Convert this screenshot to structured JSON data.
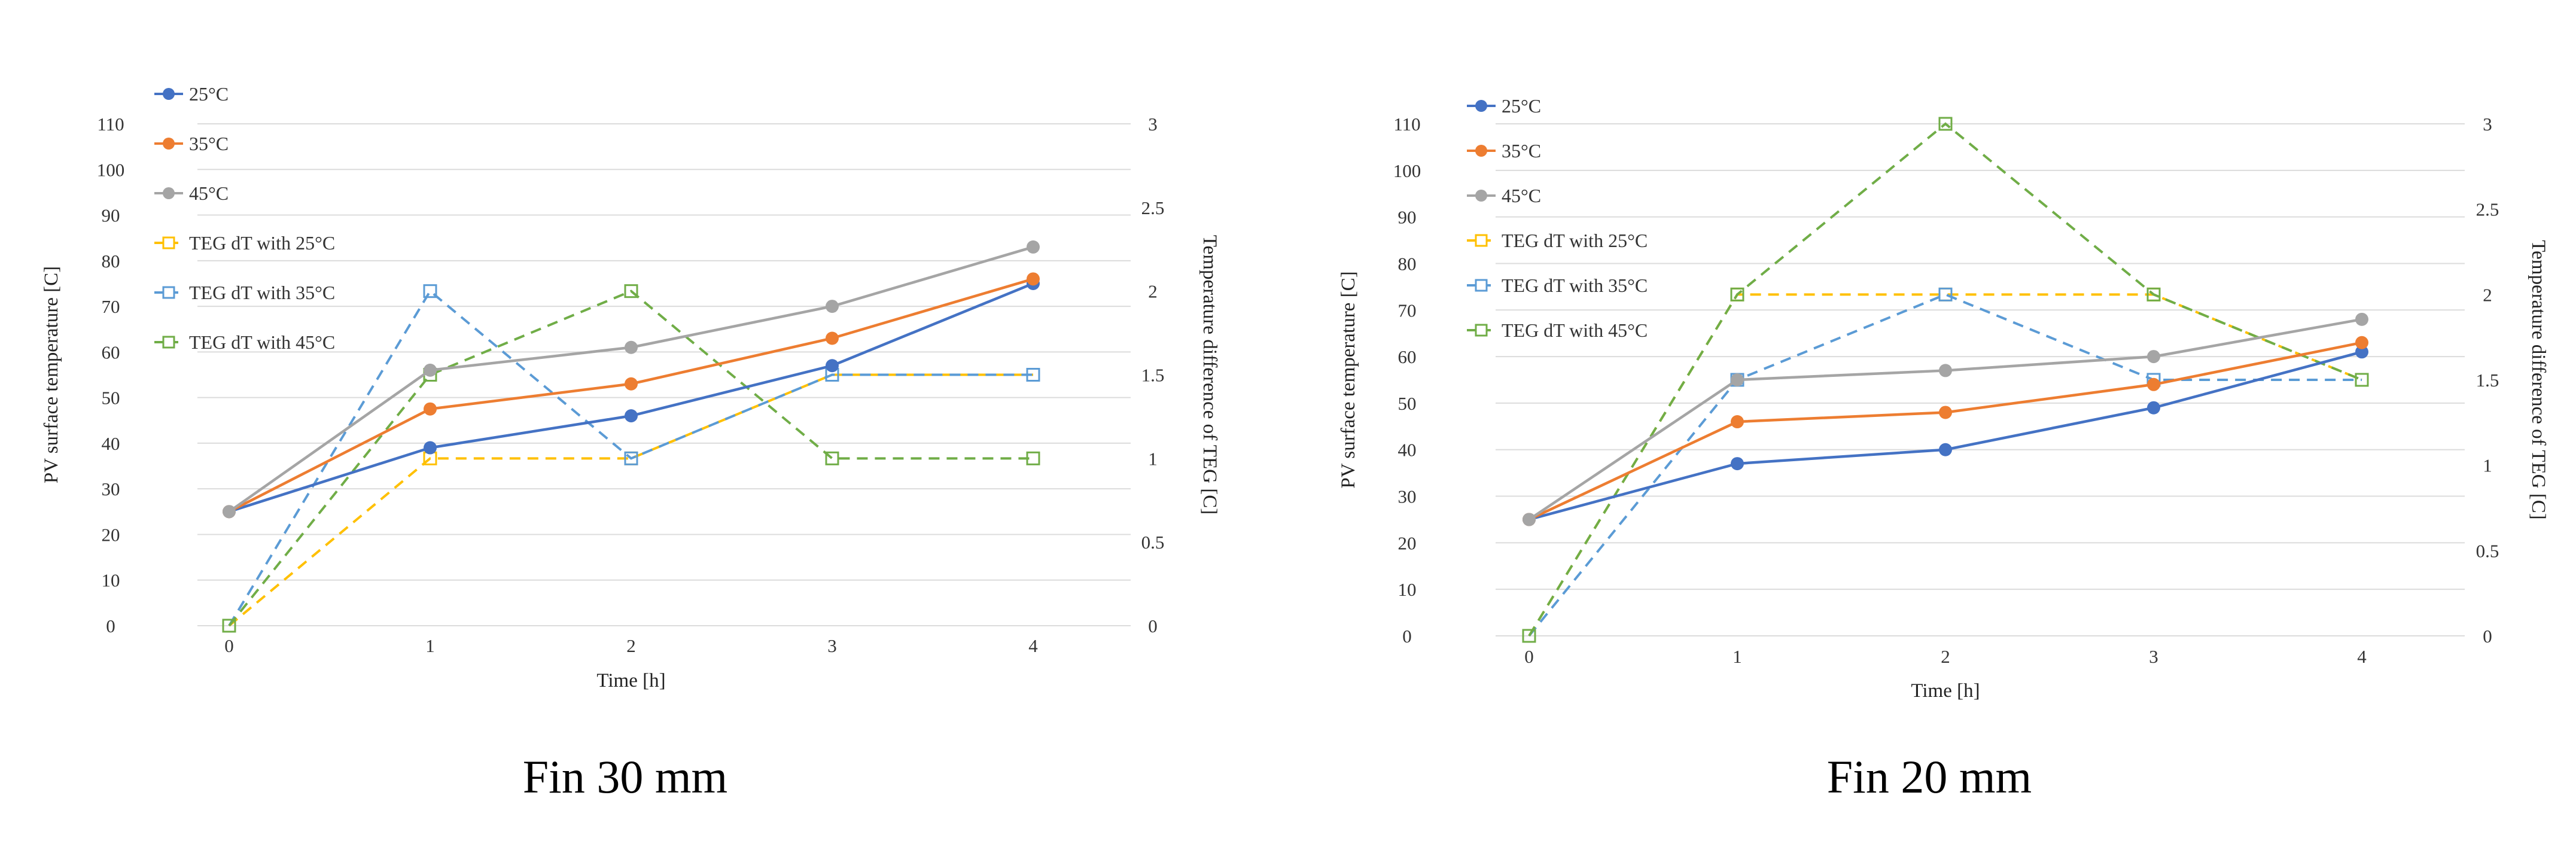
{
  "chart_data": [
    {
      "type": "line",
      "title": "",
      "caption": "Fin 30 mm",
      "xlabel": "Time [h]",
      "ylabel": "PV surface temperature [C]",
      "y2label": "Temperature difference of TEG [C]",
      "x": [
        0,
        1,
        2,
        3,
        4
      ],
      "ylim": [
        0,
        110
      ],
      "y2lim": [
        0,
        3
      ],
      "yticks": [
        "0",
        "10",
        "20",
        "30",
        "40",
        "50",
        "60",
        "70",
        "80",
        "90",
        "100",
        "110"
      ],
      "y2ticks": [
        "0",
        "0.5",
        "1",
        "1.5",
        "2",
        "2.5",
        "3"
      ],
      "legend_position": "top-left",
      "grid": true,
      "series": [
        {
          "name": "25°C",
          "axis": "left",
          "style": "solid",
          "marker": "circle",
          "color": "#4472c4",
          "values": [
            25,
            39,
            46,
            57,
            75
          ]
        },
        {
          "name": "35°C",
          "axis": "left",
          "style": "solid",
          "marker": "circle",
          "color": "#ed7d31",
          "values": [
            25,
            47.5,
            53,
            63,
            76
          ]
        },
        {
          "name": "45°C",
          "axis": "left",
          "style": "solid",
          "marker": "circle",
          "color": "#a5a5a5",
          "values": [
            25,
            56,
            61,
            70,
            83
          ]
        },
        {
          "name": "TEG dT with 25°C",
          "axis": "right",
          "style": "dashed",
          "marker": "square",
          "color": "#ffc000",
          "values": [
            0,
            1,
            1,
            1.5,
            1.5
          ]
        },
        {
          "name": "TEG dT with 35°C",
          "axis": "right",
          "style": "dashed",
          "marker": "square",
          "color": "#5b9bd5",
          "values": [
            0,
            2,
            1,
            1.5,
            1.5
          ]
        },
        {
          "name": "TEG dT with 45°C",
          "axis": "right",
          "style": "dashed",
          "marker": "square",
          "color": "#70ad47",
          "values": [
            0,
            1.5,
            2,
            1,
            1
          ]
        }
      ]
    },
    {
      "type": "line",
      "title": "",
      "caption": "Fin 20 mm",
      "xlabel": "Time [h]",
      "ylabel": "PV surface temperature [C]",
      "y2label": "Temperature difference of TEG [C]",
      "x": [
        0,
        1,
        2,
        3,
        4
      ],
      "ylim": [
        0,
        110
      ],
      "y2lim": [
        0,
        3
      ],
      "yticks": [
        "0",
        "10",
        "20",
        "30",
        "40",
        "50",
        "60",
        "70",
        "80",
        "90",
        "100",
        "110"
      ],
      "y2ticks": [
        "0",
        "0.5",
        "1",
        "1.5",
        "2",
        "2.5",
        "3"
      ],
      "legend_position": "top-left",
      "grid": true,
      "series": [
        {
          "name": "25°C",
          "axis": "left",
          "style": "solid",
          "marker": "circle",
          "color": "#4472c4",
          "values": [
            25,
            37,
            40,
            49,
            61
          ]
        },
        {
          "name": "35°C",
          "axis": "left",
          "style": "solid",
          "marker": "circle",
          "color": "#ed7d31",
          "values": [
            25,
            46,
            48,
            54,
            63
          ]
        },
        {
          "name": "45°C",
          "axis": "left",
          "style": "solid",
          "marker": "circle",
          "color": "#a5a5a5",
          "values": [
            25,
            55,
            57,
            60,
            68
          ]
        },
        {
          "name": "TEG dT with 25°C",
          "axis": "right",
          "style": "dashed",
          "marker": "square",
          "color": "#ffc000",
          "values": [
            0,
            2,
            2,
            2,
            1.5
          ]
        },
        {
          "name": "TEG dT with 35°C",
          "axis": "right",
          "style": "dashed",
          "marker": "square",
          "color": "#5b9bd5",
          "values": [
            0,
            1.5,
            2,
            1.5,
            1.5
          ]
        },
        {
          "name": "TEG dT with 45°C",
          "axis": "right",
          "style": "dashed",
          "marker": "square",
          "color": "#70ad47",
          "values": [
            0,
            2,
            3,
            2,
            1.5
          ]
        }
      ]
    }
  ]
}
